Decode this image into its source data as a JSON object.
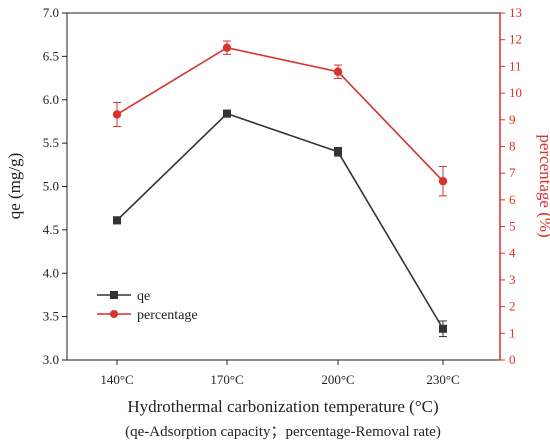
{
  "chart_data": {
    "type": "line",
    "categories": [
      "140°C",
      "170°C",
      "200°C",
      "230°C"
    ],
    "xlabel": "Hydrothermal carbonization temperature (°C)",
    "caption": "(qe-Adsorption capacity；percentage-Removal rate)",
    "y_left": {
      "label": "qe (mg/g)",
      "lim": [
        3.0,
        7.0
      ],
      "ticks": [
        "3.0",
        "3.5",
        "4.0",
        "4.5",
        "5.0",
        "5.5",
        "6.0",
        "6.5",
        "7.0"
      ]
    },
    "y_right": {
      "label": "percentage (%)",
      "lim": [
        0,
        13
      ],
      "ticks": [
        "0",
        "1",
        "2",
        "3",
        "4",
        "5",
        "6",
        "7",
        "8",
        "9",
        "10",
        "11",
        "12",
        "13"
      ]
    },
    "series": [
      {
        "name": "qe",
        "axis": "left",
        "marker": "square",
        "color": "#333333",
        "values": [
          4.61,
          5.84,
          5.4,
          3.36
        ],
        "errors": [
          0.04,
          0.04,
          0.05,
          0.09
        ]
      },
      {
        "name": "percentage",
        "axis": "right",
        "marker": "circle",
        "color": "#d9312b",
        "values": [
          9.2,
          11.7,
          10.8,
          6.7
        ],
        "errors": [
          0.45,
          0.25,
          0.25,
          0.55
        ]
      }
    ],
    "legend": "lower-left",
    "grid": false
  }
}
